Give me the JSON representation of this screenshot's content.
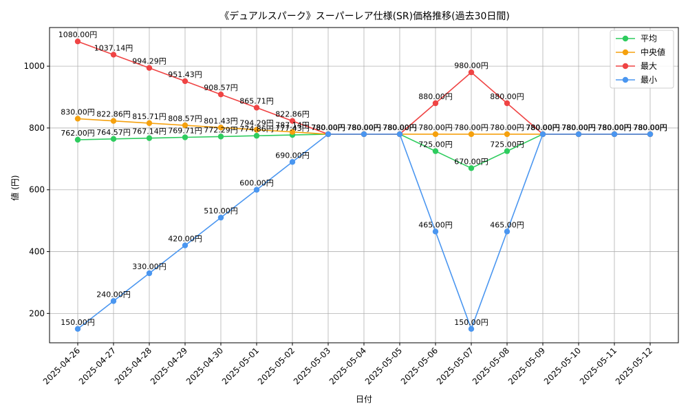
{
  "chart_data": {
    "type": "line",
    "title": "《デュアルスパーク》スーパーレア仕様(SR)価格推移(過去30日間)",
    "xlabel": "日付",
    "ylabel": "値 (円)",
    "categories": [
      "2025-04-26",
      "2025-04-27",
      "2025-04-28",
      "2025-04-29",
      "2025-04-30",
      "2025-05-01",
      "2025-05-02",
      "2025-05-03",
      "2025-05-04",
      "2025-05-05",
      "2025-05-06",
      "2025-05-07",
      "2025-05-08",
      "2025-05-09",
      "2025-05-10",
      "2025-05-11",
      "2025-05-12"
    ],
    "ylim": [
      105,
      1125
    ],
    "yticks": [
      200,
      400,
      600,
      800,
      1000
    ],
    "grid": true,
    "legend_position": "top-right",
    "value_suffix": "円",
    "series": [
      {
        "name": "平均",
        "color": "#2ecc5e",
        "values": [
          762.0,
          764.57,
          767.14,
          769.71,
          772.29,
          774.86,
          777.43,
          780.0,
          780.0,
          780.0,
          725.0,
          670.0,
          725.0,
          780.0,
          780.0,
          780.0,
          780.0
        ]
      },
      {
        "name": "中央値",
        "color": "#f5a10e",
        "values": [
          830.0,
          822.86,
          815.71,
          808.57,
          801.43,
          794.29,
          787.14,
          780.0,
          780.0,
          780.0,
          780.0,
          780.0,
          780.0,
          780.0,
          780.0,
          780.0,
          780.0
        ]
      },
      {
        "name": "最大",
        "color": "#ef4444",
        "values": [
          1080.0,
          1037.14,
          994.29,
          951.43,
          908.57,
          865.71,
          822.86,
          780.0,
          780.0,
          780.0,
          880.0,
          980.0,
          880.0,
          780.0,
          780.0,
          780.0,
          780.0
        ]
      },
      {
        "name": "最小",
        "color": "#4a96f0",
        "values": [
          150.0,
          240.0,
          330.0,
          420.0,
          510.0,
          600.0,
          690.0,
          780.0,
          780.0,
          780.0,
          465.0,
          150.0,
          465.0,
          780.0,
          780.0,
          780.0,
          780.0
        ]
      }
    ]
  }
}
